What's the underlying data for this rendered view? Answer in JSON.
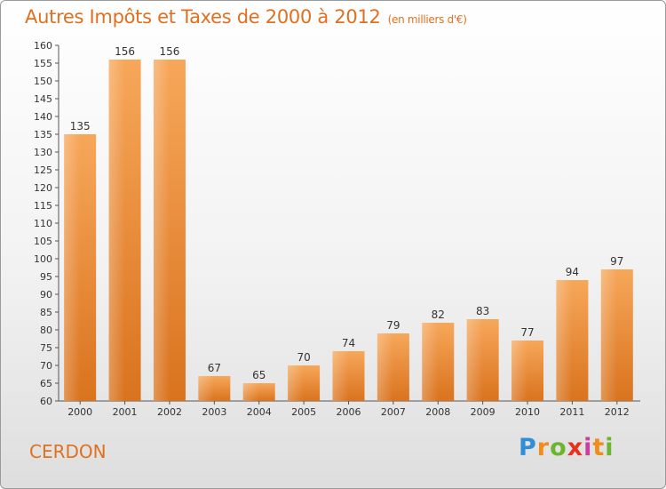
{
  "title": "Autres Impôts et Taxes de 2000 à 2012",
  "unit": "(en milliers d'€)",
  "place": "CERDON",
  "logo": {
    "p": "P",
    "r": "r",
    "o": "o",
    "x": "x",
    "i1": "i",
    "t": "t",
    "i2": "i"
  },
  "colors": {
    "bar_top": "#f7a75a",
    "bar_bottom": "#d9731e",
    "title": "#e07020"
  },
  "chart_data": {
    "type": "bar",
    "title": "Autres Impôts et Taxes de 2000 à 2012",
    "xlabel": "",
    "ylabel": "",
    "categories": [
      "2000",
      "2001",
      "2002",
      "2003",
      "2004",
      "2005",
      "2006",
      "2007",
      "2008",
      "2009",
      "2010",
      "2011",
      "2012"
    ],
    "values": [
      135,
      156,
      156,
      67,
      65,
      70,
      74,
      79,
      82,
      83,
      77,
      94,
      97
    ],
    "value_labels": [
      "135",
      "156",
      "156",
      "67",
      "65",
      "70",
      "74",
      "79",
      "82",
      "83",
      "77",
      "94",
      "97"
    ],
    "ylim": [
      60,
      160
    ],
    "ytick_step": 5,
    "yticks": [
      "60",
      "65",
      "70",
      "75",
      "80",
      "85",
      "90",
      "95",
      "100",
      "105",
      "110",
      "115",
      "120",
      "125",
      "130",
      "135",
      "140",
      "145",
      "150",
      "155",
      "160"
    ],
    "grid": false
  }
}
